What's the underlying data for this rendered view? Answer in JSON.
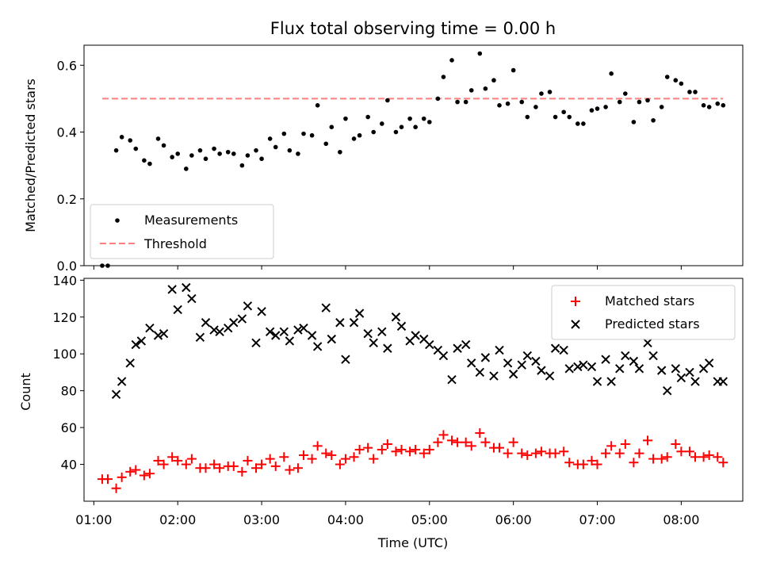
{
  "chart_data": [
    {
      "type": "scatter",
      "title": "Flux total observing time = 0.00 h",
      "xlabel": "",
      "ylabel": "Matched/Predicted stars",
      "xlim": [
        "00:53",
        "08:44"
      ],
      "ylim": [
        0,
        0.66
      ],
      "yticks": [
        0.0,
        0.2,
        0.4,
        0.6
      ],
      "ytick_labels": [
        "0.0",
        "0.2",
        "0.4",
        "0.6"
      ],
      "legend_position": "lower-left",
      "series": [
        {
          "name": "Measurements",
          "marker": "dot",
          "color": "#000000",
          "x": [
            "01:06",
            "01:10",
            "01:16",
            "01:20",
            "01:26",
            "01:30",
            "01:36",
            "01:40",
            "01:46",
            "01:50",
            "01:56",
            "02:00",
            "02:06",
            "02:10",
            "02:16",
            "02:20",
            "02:26",
            "02:30",
            "02:36",
            "02:40",
            "02:46",
            "02:50",
            "02:56",
            "03:00",
            "03:06",
            "03:10",
            "03:16",
            "03:20",
            "03:26",
            "03:30",
            "03:36",
            "03:40",
            "03:46",
            "03:50",
            "03:56",
            "04:00",
            "04:06",
            "04:10",
            "04:16",
            "04:20",
            "04:26",
            "04:30",
            "04:36",
            "04:40",
            "04:46",
            "04:50",
            "04:56",
            "05:00",
            "05:06",
            "05:10",
            "05:16",
            "05:20",
            "05:26",
            "05:30",
            "05:36",
            "05:40",
            "05:46",
            "05:50",
            "05:56",
            "06:00",
            "06:06",
            "06:10",
            "06:16",
            "06:20",
            "06:26",
            "06:30",
            "06:36",
            "06:40",
            "06:46",
            "06:50",
            "06:56",
            "07:00",
            "07:06",
            "07:10",
            "07:16",
            "07:20",
            "07:26",
            "07:30",
            "07:36",
            "07:40",
            "07:46",
            "07:50",
            "07:56",
            "08:00",
            "08:06",
            "08:10",
            "08:16",
            "08:20",
            "08:26",
            "08:30"
          ],
          "y": [
            0.0,
            0.0,
            0.345,
            0.385,
            0.375,
            0.35,
            0.315,
            0.305,
            0.38,
            0.36,
            0.325,
            0.335,
            0.29,
            0.33,
            0.345,
            0.32,
            0.35,
            0.335,
            0.34,
            0.335,
            0.3,
            0.33,
            0.345,
            0.32,
            0.38,
            0.355,
            0.395,
            0.345,
            0.335,
            0.395,
            0.39,
            0.48,
            0.365,
            0.415,
            0.34,
            0.44,
            0.38,
            0.39,
            0.445,
            0.4,
            0.425,
            0.495,
            0.4,
            0.415,
            0.44,
            0.415,
            0.44,
            0.43,
            0.5,
            0.565,
            0.615,
            0.49,
            0.49,
            0.525,
            0.635,
            0.53,
            0.555,
            0.48,
            0.485,
            0.585,
            0.49,
            0.445,
            0.475,
            0.515,
            0.52,
            0.445,
            0.46,
            0.445,
            0.425,
            0.425,
            0.465,
            0.47,
            0.475,
            0.575,
            0.49,
            0.515,
            0.43,
            0.49,
            0.495,
            0.435,
            0.475,
            0.565,
            0.555,
            0.545,
            0.52,
            0.52,
            0.48,
            0.475,
            0.485,
            0.48
          ]
        },
        {
          "name": "Threshold",
          "style": "dashed",
          "color": "#ff7f7f",
          "x": [
            "01:06",
            "08:30"
          ],
          "y": [
            0.5,
            0.5
          ]
        }
      ]
    },
    {
      "type": "scatter",
      "title": "",
      "xlabel": "Time (UTC)",
      "ylabel": "Count",
      "xlim": [
        "00:53",
        "08:44"
      ],
      "ylim": [
        20,
        141
      ],
      "xticks": [
        "01:00",
        "02:00",
        "03:00",
        "04:00",
        "05:00",
        "06:00",
        "07:00",
        "08:00"
      ],
      "yticks": [
        40,
        60,
        80,
        100,
        120,
        140
      ],
      "ytick_labels": [
        "40",
        "60",
        "80",
        "100",
        "120",
        "140"
      ],
      "legend_position": "upper-right",
      "series": [
        {
          "name": "Matched stars",
          "marker": "plus",
          "color": "#ff0000",
          "x": [
            "01:06",
            "01:10",
            "01:16",
            "01:20",
            "01:26",
            "01:30",
            "01:36",
            "01:40",
            "01:46",
            "01:50",
            "01:56",
            "02:00",
            "02:06",
            "02:10",
            "02:16",
            "02:20",
            "02:26",
            "02:30",
            "02:36",
            "02:40",
            "02:46",
            "02:50",
            "02:56",
            "03:00",
            "03:06",
            "03:10",
            "03:16",
            "03:20",
            "03:26",
            "03:30",
            "03:36",
            "03:40",
            "03:46",
            "03:50",
            "03:56",
            "04:00",
            "04:06",
            "04:10",
            "04:16",
            "04:20",
            "04:26",
            "04:30",
            "04:36",
            "04:40",
            "04:46",
            "04:50",
            "04:56",
            "05:00",
            "05:06",
            "05:10",
            "05:16",
            "05:20",
            "05:26",
            "05:30",
            "05:36",
            "05:40",
            "05:46",
            "05:50",
            "05:56",
            "06:00",
            "06:06",
            "06:10",
            "06:16",
            "06:20",
            "06:26",
            "06:30",
            "06:36",
            "06:40",
            "06:46",
            "06:50",
            "06:56",
            "07:00",
            "07:06",
            "07:10",
            "07:16",
            "07:20",
            "07:26",
            "07:30",
            "07:36",
            "07:40",
            "07:46",
            "07:50",
            "07:56",
            "08:00",
            "08:06",
            "08:10",
            "08:16",
            "08:20",
            "08:26",
            "08:30"
          ],
          "y": [
            32,
            32,
            27,
            33,
            36,
            37,
            34,
            35,
            42,
            40,
            44,
            42,
            40,
            43,
            38,
            38,
            40,
            38,
            39,
            39,
            36,
            42,
            38,
            40,
            43,
            39,
            44,
            37,
            38,
            45,
            43,
            50,
            46,
            45,
            40,
            43,
            44,
            48,
            49,
            43,
            48,
            51,
            47,
            48,
            47,
            48,
            46,
            48,
            52,
            56,
            53,
            52,
            52,
            50,
            57,
            52,
            49,
            49,
            46,
            52,
            46,
            45,
            46,
            47,
            46,
            46,
            47,
            41,
            40,
            40,
            42,
            40,
            46,
            50,
            46,
            51,
            41,
            46,
            53,
            43,
            43,
            44,
            51,
            47,
            47,
            44,
            44,
            45,
            44,
            41
          ]
        },
        {
          "name": "Predicted stars",
          "marker": "x",
          "color": "#000000",
          "x": [
            "01:16",
            "01:20",
            "01:26",
            "01:30",
            "01:34",
            "01:40",
            "01:46",
            "01:50",
            "01:56",
            "02:00",
            "02:06",
            "02:10",
            "02:16",
            "02:20",
            "02:26",
            "02:30",
            "02:36",
            "02:40",
            "02:46",
            "02:50",
            "02:56",
            "03:00",
            "03:06",
            "03:10",
            "03:16",
            "03:20",
            "03:26",
            "03:30",
            "03:36",
            "03:40",
            "03:46",
            "03:50",
            "03:56",
            "04:00",
            "04:06",
            "04:10",
            "04:16",
            "04:20",
            "04:26",
            "04:30",
            "04:36",
            "04:40",
            "04:46",
            "04:50",
            "04:56",
            "05:00",
            "05:06",
            "05:10",
            "05:16",
            "05:20",
            "05:26",
            "05:30",
            "05:36",
            "05:40",
            "05:46",
            "05:50",
            "05:56",
            "06:00",
            "06:06",
            "06:10",
            "06:16",
            "06:20",
            "06:26",
            "06:30",
            "06:36",
            "06:40",
            "06:46",
            "06:50",
            "06:56",
            "07:00",
            "07:06",
            "07:10",
            "07:16",
            "07:20",
            "07:26",
            "07:30",
            "07:36",
            "07:40",
            "07:46",
            "07:50",
            "07:56",
            "08:00",
            "08:06",
            "08:10",
            "08:16",
            "08:20",
            "08:26",
            "08:30"
          ],
          "y": [
            78,
            85,
            95,
            105,
            107,
            114,
            110,
            111,
            135,
            124,
            136,
            130,
            109,
            117,
            113,
            112,
            114,
            117,
            119,
            126,
            106,
            123,
            112,
            110,
            112,
            107,
            113,
            114,
            110,
            104,
            125,
            108,
            117,
            97,
            117,
            122,
            111,
            106,
            112,
            103,
            120,
            115,
            107,
            110,
            108,
            105,
            102,
            99,
            86,
            103,
            105,
            95,
            90,
            98,
            88,
            102,
            95,
            89,
            94,
            99,
            96,
            91,
            88,
            103,
            102,
            92,
            93,
            94,
            93,
            85,
            97,
            85,
            92,
            99,
            96,
            92,
            106,
            99,
            91,
            80,
            92,
            87,
            90,
            85,
            92,
            95,
            85,
            85
          ]
        }
      ]
    }
  ]
}
